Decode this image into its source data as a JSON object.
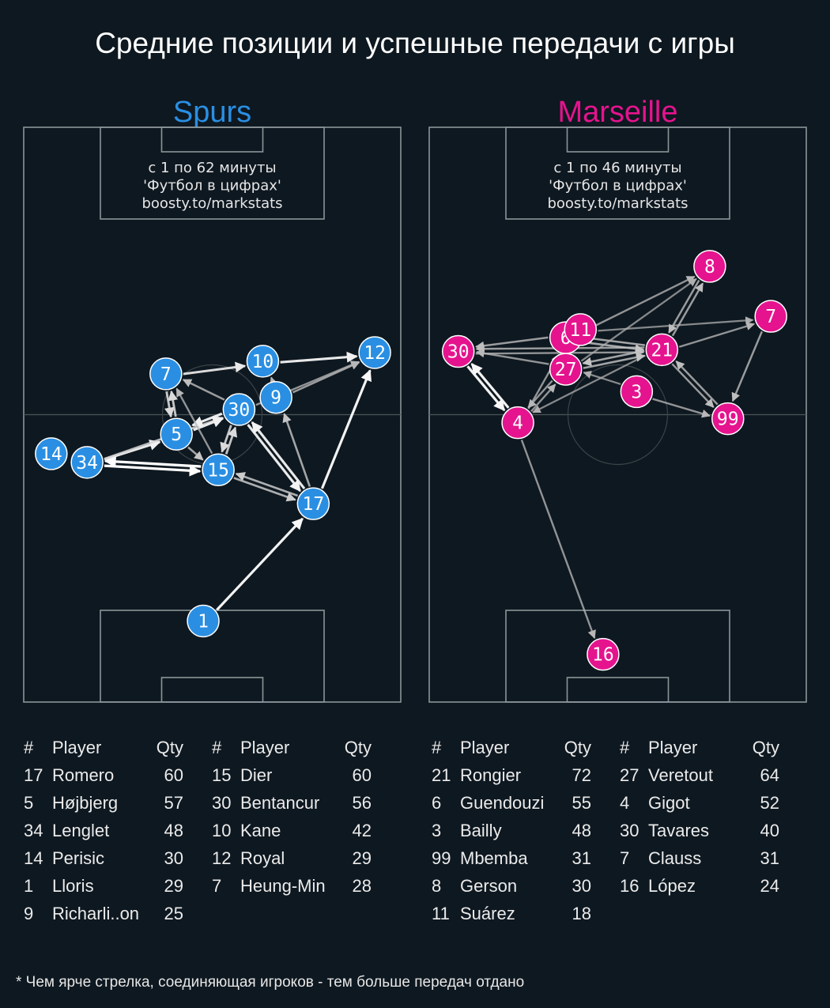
{
  "title": "Средние позиции и успешные передачи с игры",
  "footnote": "* Чем ярче стрелка, соединяющая игроков - тем больше передач отдано",
  "table_headers": {
    "num": "#",
    "player": "Player",
    "qty": "Qty"
  },
  "colors": {
    "background": "#0e1820",
    "spurs": "#2a8fe3",
    "marseille": "#e5138e",
    "pitch_lines": "#8a9599"
  },
  "chart_data": [
    {
      "type": "pass_network",
      "team": "Spurs",
      "color": "#2a8fe3",
      "info": [
        "с 1 по 62 минуты",
        "'Футбол в цифрах'",
        "boosty.to/markstats"
      ],
      "players": [
        {
          "num": "1",
          "name": "Lloris",
          "qty": 29,
          "x": 47.6,
          "y": 14.1
        },
        {
          "num": "17",
          "name": "Romero",
          "qty": 60,
          "x": 76.8,
          "y": 34.5
        },
        {
          "num": "5",
          "name": "Højbjerg",
          "qty": 57,
          "x": 40.5,
          "y": 46.6
        },
        {
          "num": "34",
          "name": "Lenglet",
          "qty": 48,
          "x": 16.8,
          "y": 41.7
        },
        {
          "num": "14",
          "name": "Perisic",
          "qty": 30,
          "x": 7.3,
          "y": 43.2
        },
        {
          "num": "9",
          "name": "Richarli..on",
          "qty": 25,
          "x": 66.9,
          "y": 53.0
        },
        {
          "num": "15",
          "name": "Dier",
          "qty": 60,
          "x": 51.6,
          "y": 40.4
        },
        {
          "num": "30",
          "name": "Bentancur",
          "qty": 56,
          "x": 57.1,
          "y": 50.9
        },
        {
          "num": "10",
          "name": "Kane",
          "qty": 42,
          "x": 63.4,
          "y": 59.3
        },
        {
          "num": "12",
          "name": "Royal",
          "qty": 29,
          "x": 93.1,
          "y": 60.8
        },
        {
          "num": "7",
          "name": "Heung-Min",
          "qty": 28,
          "x": 37.7,
          "y": 57.1
        }
      ],
      "passes": [
        {
          "from": "1",
          "to": "17",
          "strength": 0.95
        },
        {
          "from": "17",
          "to": "30",
          "strength": 0.92
        },
        {
          "from": "30",
          "to": "17",
          "strength": 0.92
        },
        {
          "from": "17",
          "to": "12",
          "strength": 0.95
        },
        {
          "from": "34",
          "to": "15",
          "strength": 1.0
        },
        {
          "from": "15",
          "to": "34",
          "strength": 1.0
        },
        {
          "from": "34",
          "to": "5",
          "strength": 0.9
        },
        {
          "from": "34",
          "to": "30",
          "strength": 0.7
        },
        {
          "from": "5",
          "to": "30",
          "strength": 0.9
        },
        {
          "from": "30",
          "to": "5",
          "strength": 0.9
        },
        {
          "from": "7",
          "to": "10",
          "strength": 0.85
        },
        {
          "from": "10",
          "to": "12",
          "strength": 0.9
        },
        {
          "from": "5",
          "to": "7",
          "strength": 0.75
        },
        {
          "from": "7",
          "to": "5",
          "strength": 0.75
        },
        {
          "from": "15",
          "to": "30",
          "strength": 0.75
        },
        {
          "from": "30",
          "to": "15",
          "strength": 0.75
        },
        {
          "from": "15",
          "to": "17",
          "strength": 0.65
        },
        {
          "from": "17",
          "to": "15",
          "strength": 0.65
        },
        {
          "from": "17",
          "to": "9",
          "strength": 0.6
        },
        {
          "from": "9",
          "to": "12",
          "strength": 0.55
        },
        {
          "from": "30",
          "to": "12",
          "strength": 0.5
        },
        {
          "from": "30",
          "to": "7",
          "strength": 0.55
        },
        {
          "from": "15",
          "to": "7",
          "strength": 0.5
        },
        {
          "from": "5",
          "to": "15",
          "strength": 0.6
        },
        {
          "from": "9",
          "to": "10",
          "strength": 0.5
        }
      ]
    },
    {
      "type": "pass_network",
      "team": "Marseille",
      "color": "#e5138e",
      "info": [
        "с 1 по 46 минуты",
        "'Футбол в цифрах'",
        "boosty.to/markstats"
      ],
      "players": [
        {
          "num": "21",
          "name": "Rongier",
          "qty": 72,
          "x": 61.7,
          "y": 61.3
        },
        {
          "num": "6",
          "name": "Guendouzi",
          "qty": 55,
          "x": 36.2,
          "y": 63.4
        },
        {
          "num": "3",
          "name": "Bailly",
          "qty": 48,
          "x": 55.0,
          "y": 54.0
        },
        {
          "num": "99",
          "name": "Mbemba",
          "qty": 31,
          "x": 79.2,
          "y": 49.3
        },
        {
          "num": "8",
          "name": "Gerson",
          "qty": 30,
          "x": 74.4,
          "y": 75.8
        },
        {
          "num": "11",
          "name": "Suárez",
          "qty": 18,
          "x": 40.1,
          "y": 64.8
        },
        {
          "num": "27",
          "name": "Veretout",
          "qty": 64,
          "x": 36.2,
          "y": 57.9
        },
        {
          "num": "4",
          "name": "Gigot",
          "qty": 52,
          "x": 23.5,
          "y": 48.6
        },
        {
          "num": "30",
          "name": "Tavares",
          "qty": 40,
          "x": 7.7,
          "y": 61.0
        },
        {
          "num": "7",
          "name": "Clauss",
          "qty": 31,
          "x": 90.6,
          "y": 67.1
        },
        {
          "num": "16",
          "name": "López",
          "qty": 24,
          "x": 46.1,
          "y": 8.3
        }
      ],
      "passes": [
        {
          "from": "4",
          "to": "30",
          "strength": 0.95
        },
        {
          "from": "30",
          "to": "4",
          "strength": 0.95
        },
        {
          "from": "4",
          "to": "16",
          "strength": 0.5
        },
        {
          "from": "4",
          "to": "6",
          "strength": 0.5
        },
        {
          "from": "4",
          "to": "27",
          "strength": 0.5
        },
        {
          "from": "27",
          "to": "4",
          "strength": 0.5
        },
        {
          "from": "21",
          "to": "4",
          "strength": 0.45
        },
        {
          "from": "21",
          "to": "30",
          "strength": 0.55
        },
        {
          "from": "6",
          "to": "30",
          "strength": 0.55
        },
        {
          "from": "27",
          "to": "30",
          "strength": 0.5
        },
        {
          "from": "30",
          "to": "21",
          "strength": 0.5
        },
        {
          "from": "6",
          "to": "21",
          "strength": 0.6
        },
        {
          "from": "21",
          "to": "6",
          "strength": 0.6
        },
        {
          "from": "6",
          "to": "8",
          "strength": 0.5
        },
        {
          "from": "11",
          "to": "7",
          "strength": 0.45
        },
        {
          "from": "21",
          "to": "7",
          "strength": 0.5
        },
        {
          "from": "21",
          "to": "8",
          "strength": 0.55
        },
        {
          "from": "8",
          "to": "21",
          "strength": 0.55
        },
        {
          "from": "21",
          "to": "27",
          "strength": 0.6
        },
        {
          "from": "27",
          "to": "21",
          "strength": 0.6
        },
        {
          "from": "27",
          "to": "8",
          "strength": 0.45
        },
        {
          "from": "21",
          "to": "99",
          "strength": 0.55
        },
        {
          "from": "99",
          "to": "21",
          "strength": 0.55
        },
        {
          "from": "7",
          "to": "99",
          "strength": 0.55
        },
        {
          "from": "3",
          "to": "99",
          "strength": 0.5
        },
        {
          "from": "3",
          "to": "27",
          "strength": 0.45
        },
        {
          "from": "27",
          "to": "6",
          "strength": 0.55
        }
      ]
    }
  ],
  "tables": [
    {
      "left": [
        {
          "num": "17",
          "name": "Romero",
          "qty": "60"
        },
        {
          "num": "5",
          "name": "Højbjerg",
          "qty": "57"
        },
        {
          "num": "34",
          "name": "Lenglet",
          "qty": "48"
        },
        {
          "num": "14",
          "name": "Perisic",
          "qty": "30"
        },
        {
          "num": "1",
          "name": "Lloris",
          "qty": "29"
        },
        {
          "num": "9",
          "name": "Richarli..on",
          "qty": "25"
        }
      ],
      "right": [
        {
          "num": "15",
          "name": "Dier",
          "qty": "60"
        },
        {
          "num": "30",
          "name": "Bentancur",
          "qty": "56"
        },
        {
          "num": "10",
          "name": "Kane",
          "qty": "42"
        },
        {
          "num": "12",
          "name": "Royal",
          "qty": "29"
        },
        {
          "num": "7",
          "name": "Heung-Min",
          "qty": "28"
        }
      ]
    },
    {
      "left": [
        {
          "num": "21",
          "name": "Rongier",
          "qty": "72"
        },
        {
          "num": "6",
          "name": "Guendouzi",
          "qty": "55"
        },
        {
          "num": "3",
          "name": "Bailly",
          "qty": "48"
        },
        {
          "num": "99",
          "name": "Mbemba",
          "qty": "31"
        },
        {
          "num": "8",
          "name": "Gerson",
          "qty": "30"
        },
        {
          "num": "11",
          "name": "Suárez",
          "qty": "18"
        }
      ],
      "right": [
        {
          "num": "27",
          "name": "Veretout",
          "qty": "64"
        },
        {
          "num": "4",
          "name": "Gigot",
          "qty": "52"
        },
        {
          "num": "30",
          "name": "Tavares",
          "qty": "40"
        },
        {
          "num": "7",
          "name": "Clauss",
          "qty": "31"
        },
        {
          "num": "16",
          "name": "López",
          "qty": "24"
        }
      ]
    }
  ]
}
